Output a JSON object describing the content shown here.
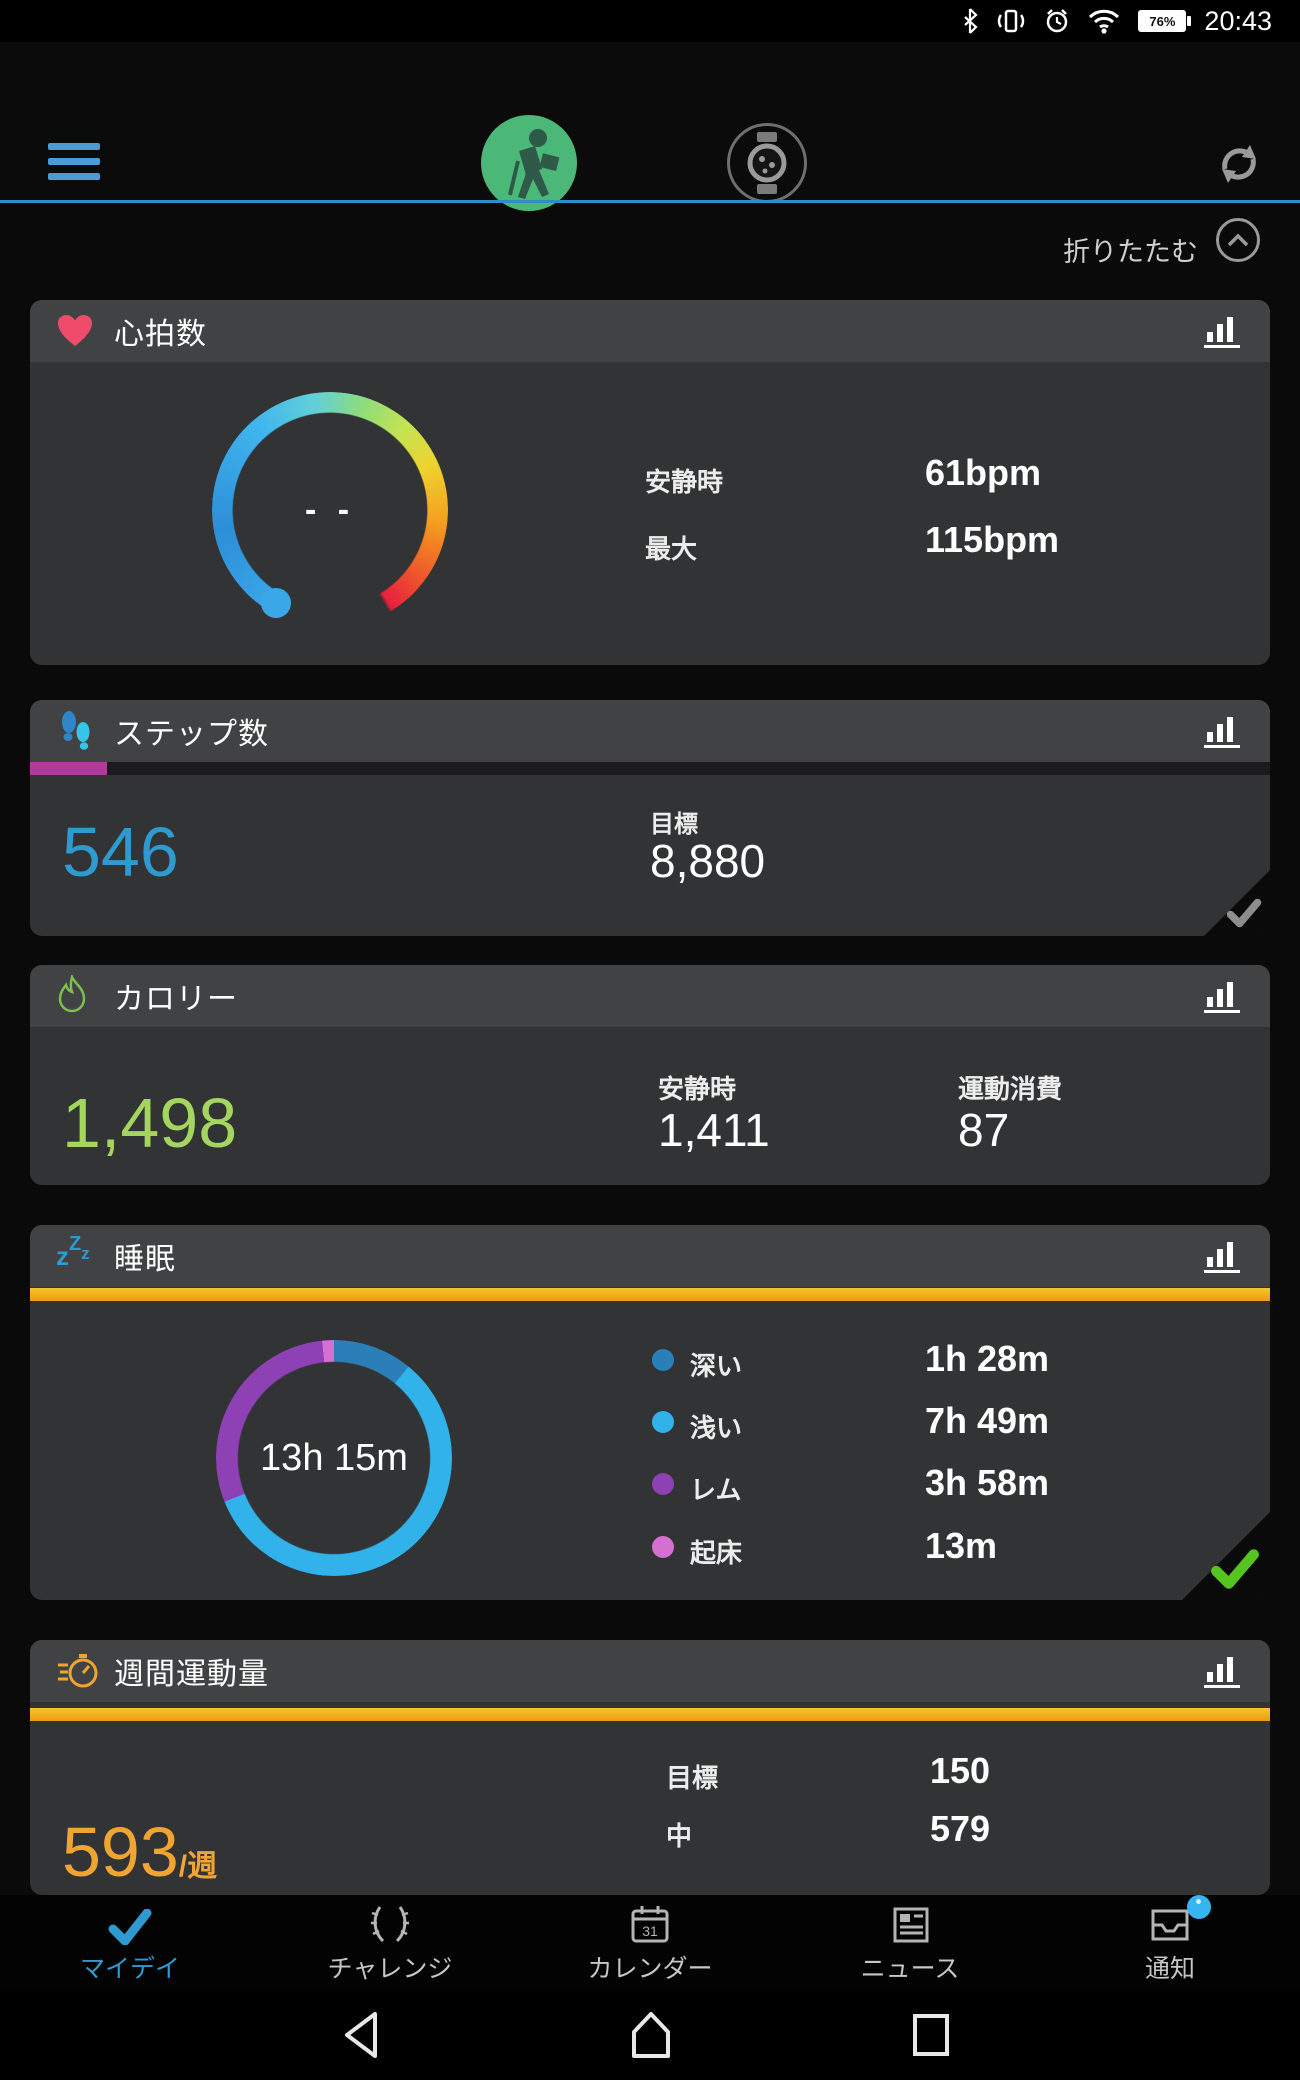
{
  "colors": {
    "accent_blue": "#2e9ad0",
    "steps_value": "#2e9ad0",
    "steps_progress": "#b13a9e",
    "calories_value": "#a4d55f",
    "weekly_value": "#f0a432",
    "orange_bar": "#f3ab1e",
    "heart_icon": "#ef4b6b",
    "green_check": "#55c41f",
    "gray_check": "#8d8d8d"
  },
  "status_bar": {
    "time": "20:43",
    "battery_percent": "76%",
    "icons": [
      "bluetooth-icon",
      "vibrate-icon",
      "alarm-icon",
      "wifi-icon",
      "battery-icon"
    ]
  },
  "header": {
    "icons": [
      "menu-icon",
      "app-logo-hiker",
      "watch-icon",
      "sync-icon"
    ]
  },
  "collapse": {
    "label": "折りたたむ"
  },
  "cards": {
    "heart_rate": {
      "title": "心拍数",
      "center_value": "- -"
    },
    "steps": {
      "title": "ステップ数",
      "value": "546",
      "goal_label": "目標",
      "goal_value": "8,880",
      "progress_percent": 6.2
    },
    "calories": {
      "title": "カロリー",
      "value": "1,498",
      "columns": [
        {
          "label": "安静時",
          "value": "1,411"
        },
        {
          "label": "運動消費",
          "value": "87"
        }
      ]
    },
    "sleep": {
      "title": "睡眠"
    },
    "weekly_intensity": {
      "title": "週間運動量",
      "value": "593",
      "unit": "/週",
      "rows": [
        {
          "label": "目標",
          "value": "150"
        },
        {
          "label": "中",
          "value": "579"
        }
      ]
    }
  },
  "chart_data": [
    {
      "type": "pie",
      "title": "睡眠",
      "total_label": "13h 15m",
      "legend_position": "right",
      "series": [
        {
          "name": "深い",
          "minutes": 88,
          "label": "1h 28m",
          "color": "#2a7fb8"
        },
        {
          "name": "浅い",
          "minutes": 469,
          "label": "7h 49m",
          "color": "#31b2ea"
        },
        {
          "name": "レム",
          "minutes": 238,
          "label": "3h 58m",
          "color": "#8d41b4"
        },
        {
          "name": "起床",
          "minutes": 13,
          "label": "13m",
          "color": "#d56fd2"
        }
      ]
    },
    {
      "type": "gauge",
      "title": "心拍数",
      "center_value": "- -",
      "metrics": [
        {
          "name": "安静時",
          "value": "61bpm"
        },
        {
          "name": "最大",
          "value": "115bpm"
        }
      ]
    }
  ],
  "bottom_nav": {
    "items": [
      {
        "label": "マイデイ",
        "active": true
      },
      {
        "label": "チャレンジ",
        "active": false
      },
      {
        "label": "カレンダー",
        "active": false
      },
      {
        "label": "ニュース",
        "active": false
      },
      {
        "label": "通知",
        "active": false,
        "badge": true
      }
    ]
  },
  "android_nav": [
    "back-button",
    "home-button",
    "recents-button"
  ]
}
